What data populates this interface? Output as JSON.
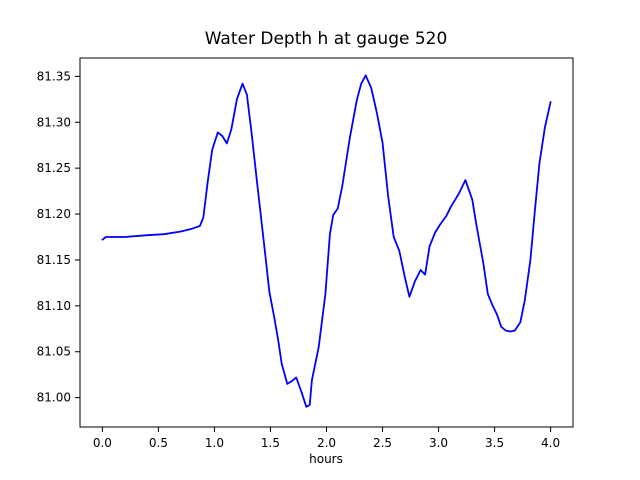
{
  "figure": {
    "background": "#ffffff",
    "title": "Water Depth h at gauge 520",
    "xlabel": "hours"
  },
  "chart_data": {
    "type": "line",
    "title": "Water Depth h at gauge 520",
    "xlabel": "hours",
    "ylabel": "",
    "legend": null,
    "grid": false,
    "line_color": "#0000ff",
    "axis_color": "#000000",
    "xlim": [
      -0.2,
      4.2
    ],
    "ylim": [
      80.968,
      81.37
    ],
    "xticks": [
      0.0,
      0.5,
      1.0,
      1.5,
      2.0,
      2.5,
      3.0,
      3.5,
      4.0
    ],
    "xtick_labels": [
      "0.0",
      "0.5",
      "1.0",
      "1.5",
      "2.0",
      "2.5",
      "3.0",
      "3.5",
      "4.0"
    ],
    "yticks": [
      81.0,
      81.05,
      81.1,
      81.15,
      81.2,
      81.25,
      81.3,
      81.35
    ],
    "ytick_labels": [
      "81.00",
      "81.05",
      "81.10",
      "81.15",
      "81.20",
      "81.25",
      "81.30",
      "81.35"
    ],
    "x": [
      0.0,
      0.03,
      0.2,
      0.4,
      0.55,
      0.7,
      0.8,
      0.87,
      0.9,
      0.94,
      0.98,
      1.03,
      1.07,
      1.11,
      1.15,
      1.2,
      1.25,
      1.29,
      1.33,
      1.38,
      1.44,
      1.49,
      1.53,
      1.57,
      1.6,
      1.65,
      1.69,
      1.73,
      1.78,
      1.82,
      1.85,
      1.87,
      1.93,
      1.99,
      2.03,
      2.06,
      2.1,
      2.14,
      2.21,
      2.27,
      2.31,
      2.35,
      2.4,
      2.45,
      2.5,
      2.55,
      2.6,
      2.65,
      2.7,
      2.74,
      2.79,
      2.84,
      2.88,
      2.92,
      2.97,
      3.01,
      3.07,
      3.11,
      3.18,
      3.24,
      3.3,
      3.34,
      3.4,
      3.44,
      3.48,
      3.52,
      3.56,
      3.6,
      3.64,
      3.68,
      3.73,
      3.77,
      3.82,
      3.86,
      3.9,
      3.95,
      4.0
    ],
    "values": [
      81.172,
      81.175,
      81.175,
      81.177,
      81.178,
      81.181,
      81.184,
      81.187,
      81.196,
      81.235,
      81.27,
      81.289,
      81.285,
      81.277,
      81.292,
      81.325,
      81.342,
      81.33,
      81.29,
      81.235,
      81.17,
      81.115,
      81.09,
      81.062,
      81.037,
      81.015,
      81.018,
      81.022,
      81.005,
      80.99,
      80.992,
      81.019,
      81.055,
      81.113,
      81.178,
      81.199,
      81.206,
      81.23,
      81.284,
      81.324,
      81.342,
      81.351,
      81.337,
      81.31,
      81.278,
      81.22,
      81.175,
      81.16,
      81.131,
      81.11,
      81.127,
      81.139,
      81.134,
      81.165,
      81.18,
      81.188,
      81.198,
      81.208,
      81.222,
      81.237,
      81.216,
      81.187,
      81.146,
      81.113,
      81.101,
      81.091,
      81.077,
      81.073,
      81.072,
      81.073,
      81.082,
      81.106,
      81.15,
      81.204,
      81.255,
      81.295,
      81.322
    ]
  },
  "layout_hints": {
    "legend_position": "none",
    "tick_direction": "out"
  }
}
